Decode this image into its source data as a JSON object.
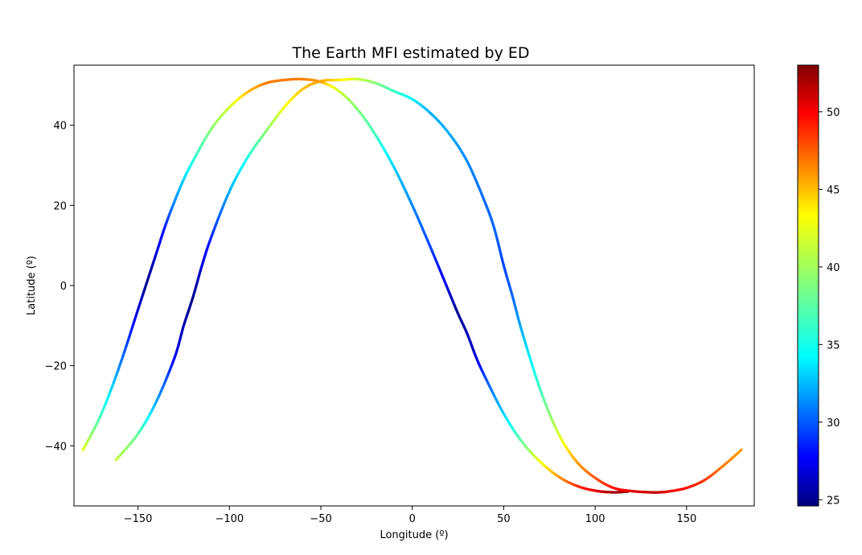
{
  "chart_data": {
    "type": "scatter",
    "title": "The Earth MFI estimated by ED",
    "xlabel": "Longitude (º)",
    "ylabel": "Latitude (º)",
    "xlim": [
      -185,
      187
    ],
    "ylim": [
      -55,
      55
    ],
    "xticks": [
      -150,
      -100,
      -50,
      0,
      50,
      100,
      150
    ],
    "yticks": [
      -40,
      -20,
      0,
      20,
      40
    ],
    "xtick_labels": [
      "−150",
      "−100",
      "−50",
      "0",
      "50",
      "100",
      "150"
    ],
    "ytick_labels": [
      "−40",
      "−20",
      "0",
      "20",
      "40"
    ],
    "grid": false,
    "colorbar": {
      "colormap": "jet",
      "range": [
        24.6,
        53
      ],
      "ticks": [
        25,
        30,
        35,
        40,
        45,
        50
      ],
      "tick_labels": [
        "25",
        "30",
        "35",
        "40",
        "45",
        "50"
      ],
      "placement": "right"
    },
    "series": [
      {
        "x": [
          -180,
          -170,
          -160,
          -150,
          -145,
          -140,
          -135,
          -130,
          -125,
          -120,
          -110,
          -100,
          -90,
          -80,
          -70,
          -60,
          -50,
          -40,
          -30,
          -20,
          -10,
          0,
          10,
          20,
          25,
          30,
          35,
          40,
          50,
          60,
          70,
          80,
          90,
          100,
          110,
          118
        ],
        "y": [
          -41.0,
          -32.0,
          -20.0,
          -6.0,
          1.0,
          8.0,
          15.0,
          21.0,
          26.5,
          31.0,
          39.0,
          44.5,
          48.3,
          50.5,
          51.3,
          51.5,
          50.8,
          48.5,
          44.0,
          37.5,
          29.5,
          20.0,
          9.5,
          -1.5,
          -7.0,
          -12.0,
          -18.0,
          -23.0,
          -32.0,
          -39.0,
          -44.0,
          -47.7,
          -50.0,
          -51.2,
          -51.6,
          -51.4
        ],
        "values": [
          42,
          37,
          32,
          27,
          25,
          27,
          29,
          32,
          34,
          36,
          39,
          41,
          44,
          46,
          46,
          46,
          45,
          41,
          39,
          37,
          34,
          32,
          30,
          27,
          25,
          26,
          27,
          30,
          34,
          38,
          42,
          45,
          48,
          50,
          52,
          52.5
        ]
      },
      {
        "x": [
          -162,
          -150,
          -140,
          -130,
          -125,
          -120,
          -115,
          -110,
          -100,
          -90,
          -80,
          -70,
          -60,
          -50,
          -40,
          -30,
          -20,
          -10,
          0,
          10,
          20,
          30,
          40,
          45,
          50,
          55,
          60,
          70,
          80,
          90,
          100,
          110,
          120,
          130,
          135,
          140,
          150,
          160,
          170,
          180
        ],
        "y": [
          -43.5,
          -37.0,
          -29.0,
          -18.0,
          -10.0,
          -3.0,
          5.0,
          12.0,
          23.5,
          32.0,
          38.5,
          44.5,
          49.0,
          51.0,
          51.3,
          51.5,
          50.5,
          48.5,
          46.5,
          43.0,
          38.0,
          31.0,
          20.5,
          14.0,
          5.0,
          -3.0,
          -11.5,
          -26.0,
          -37.0,
          -44.0,
          -48.0,
          -50.5,
          -51.3,
          -51.6,
          -51.6,
          -51.4,
          -50.5,
          -48.5,
          -45.0,
          -41.0
        ],
        "values": [
          41,
          38,
          33,
          28,
          26,
          25,
          27,
          29,
          33,
          36,
          39,
          42,
          44,
          45,
          43,
          41,
          39,
          37,
          35,
          33,
          33,
          32,
          31,
          31,
          30,
          31,
          33,
          37,
          41,
          45,
          47,
          49,
          50,
          51,
          51,
          50,
          49,
          48,
          46,
          45
        ]
      }
    ]
  }
}
